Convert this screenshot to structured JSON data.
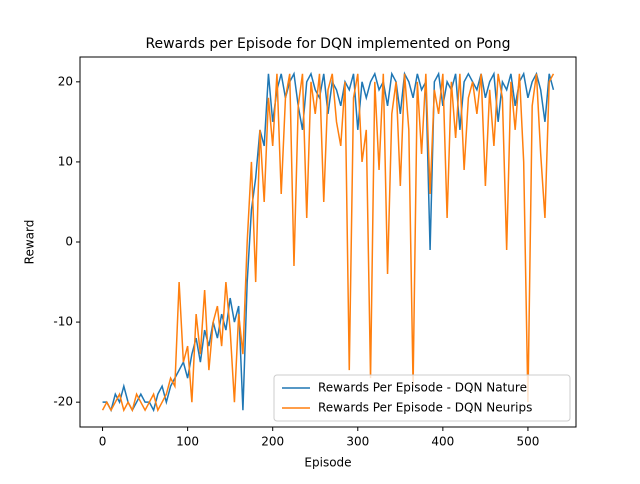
{
  "chart_data": {
    "type": "line",
    "title": "Rewards per Episode for DQN implemented on Pong",
    "xlabel": "Episode",
    "ylabel": "Reward",
    "x": [
      0,
      5,
      10,
      15,
      20,
      25,
      30,
      35,
      40,
      45,
      50,
      55,
      60,
      65,
      70,
      75,
      80,
      85,
      90,
      95,
      100,
      105,
      110,
      115,
      120,
      125,
      130,
      135,
      140,
      145,
      150,
      155,
      160,
      165,
      170,
      175,
      180,
      185,
      190,
      195,
      200,
      205,
      210,
      215,
      220,
      225,
      230,
      235,
      240,
      245,
      250,
      255,
      260,
      265,
      270,
      275,
      280,
      285,
      290,
      295,
      300,
      305,
      310,
      315,
      320,
      325,
      330,
      335,
      340,
      345,
      350,
      355,
      360,
      365,
      370,
      375,
      380,
      385,
      390,
      395,
      400,
      405,
      410,
      415,
      420,
      425,
      430,
      435,
      440,
      445,
      450,
      455,
      460,
      465,
      470,
      475,
      480,
      485,
      490,
      495,
      500,
      505,
      510,
      515,
      520,
      525,
      530
    ],
    "series": [
      {
        "name": "Rewards Per Episode - DQN Nature",
        "color": "#1f77b4",
        "values": [
          -20,
          -20,
          -21,
          -19,
          -20,
          -18,
          -20,
          -21,
          -20,
          -19,
          -20,
          -20,
          -21,
          -19,
          -18,
          -20,
          -18,
          -17,
          -16,
          -15,
          -17,
          -14,
          -12,
          -15,
          -11,
          -13,
          -10,
          -12,
          -9,
          -11,
          -7,
          -10,
          -8,
          -21,
          -5,
          4,
          8,
          14,
          12,
          21,
          15,
          19,
          21,
          18,
          20,
          21,
          17,
          14,
          20,
          21,
          19,
          18,
          21,
          16,
          20,
          19,
          17,
          20,
          19,
          21,
          14,
          20,
          18,
          20,
          21,
          19,
          20,
          17,
          21,
          20,
          16,
          21,
          20,
          18,
          21,
          19,
          20,
          -1,
          20,
          21,
          17,
          20,
          19,
          21,
          14,
          20,
          21,
          20,
          19,
          21,
          18,
          20,
          21,
          15,
          20,
          19,
          21,
          17,
          20,
          21,
          18,
          20,
          21,
          19,
          15,
          21,
          19
        ]
      },
      {
        "name": "Rewards Per Episode - DQN Neurips",
        "color": "#ff7f0e",
        "values": [
          -21,
          -20,
          -21,
          -20,
          -19,
          -21,
          -20,
          -21,
          -19,
          -20,
          -21,
          -20,
          -19,
          -21,
          -20,
          -19,
          -17,
          -18,
          -5,
          -15,
          -13,
          -20,
          -9,
          -14,
          -6,
          -16,
          -10,
          -8,
          -13,
          -5,
          -11,
          -20,
          -9,
          -14,
          0,
          10,
          -5,
          14,
          5,
          18,
          12,
          21,
          6,
          18,
          21,
          -3,
          17,
          21,
          3,
          20,
          16,
          21,
          5,
          19,
          21,
          15,
          12,
          20,
          -16,
          18,
          21,
          10,
          14,
          -17,
          20,
          9,
          21,
          -4,
          16,
          20,
          7,
          21,
          14,
          -18,
          20,
          11,
          21,
          6,
          19,
          16,
          21,
          3,
          20,
          13,
          21,
          9,
          18,
          20,
          16,
          21,
          7,
          19,
          12,
          21,
          18,
          -1,
          20,
          14,
          21,
          10,
          -20,
          17,
          21,
          11,
          3,
          20,
          21
        ]
      }
    ],
    "xlim": [
      -26.5,
      556.5
    ],
    "ylim": [
      -23.1,
      23.1
    ],
    "xticks": [
      0,
      100,
      200,
      300,
      400,
      500
    ],
    "yticks": [
      -20,
      -10,
      0,
      10,
      20
    ],
    "legend": "lower right",
    "grid": false
  }
}
